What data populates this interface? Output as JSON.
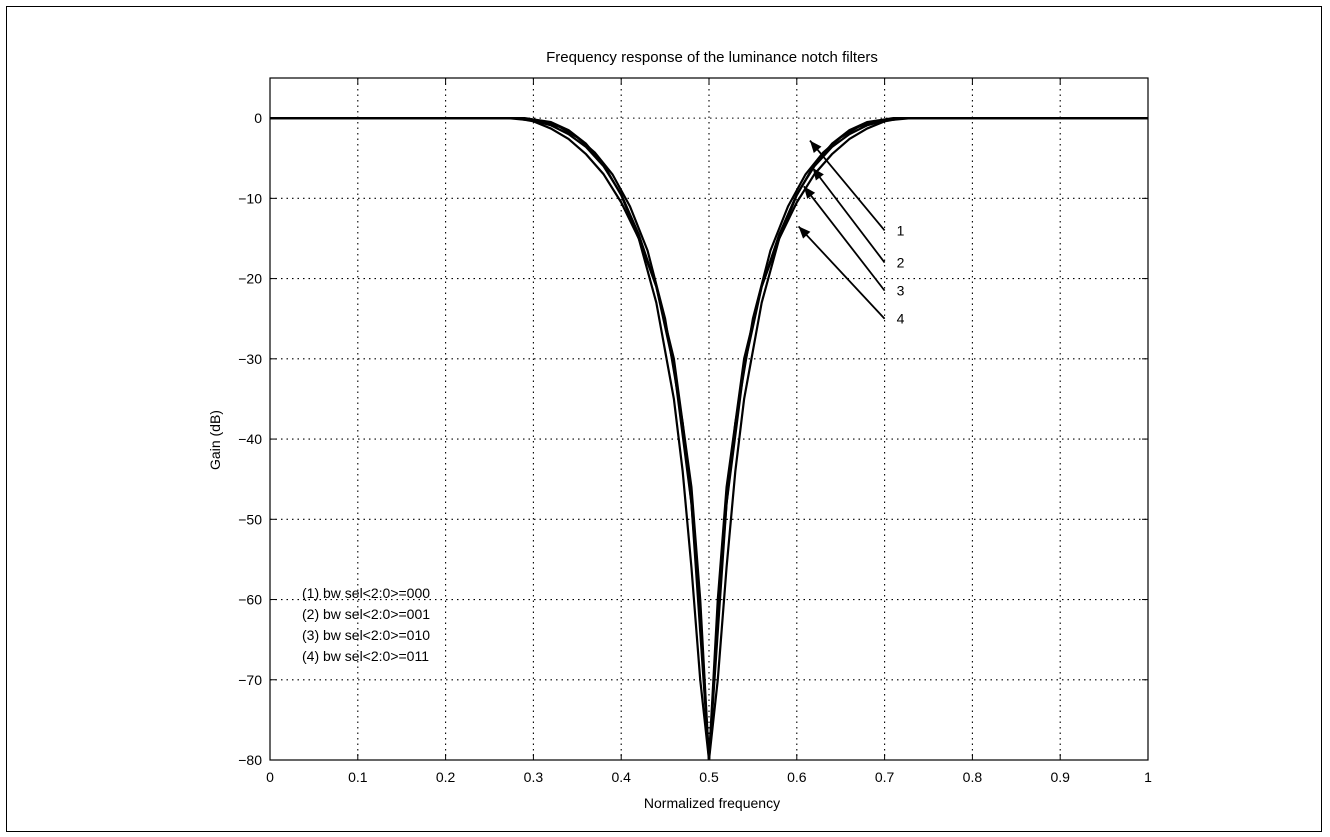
{
  "chart_data": {
    "type": "line",
    "title": "Frequency response of the luminance notch filters",
    "xlabel": "Normalized frequency",
    "ylabel": "Gain (dB)",
    "xlim": [
      0,
      1
    ],
    "ylim": [
      -80,
      5
    ],
    "x_ticks": [
      0,
      0.1,
      0.2,
      0.3,
      0.4,
      0.5,
      0.6,
      0.7,
      0.8,
      0.9,
      1
    ],
    "x_tick_labels": [
      "0",
      "0.1",
      "0.2",
      "0.3",
      "0.4",
      "0.5",
      "0.6",
      "0.7",
      "0.8",
      "0.9",
      "1"
    ],
    "y_ticks": [
      0,
      -10,
      -20,
      -30,
      -40,
      -50,
      -60,
      -70,
      -80
    ],
    "y_tick_labels": [
      "0",
      "−10",
      "−20",
      "−30",
      "−40",
      "−50",
      "−60",
      "−70",
      "−80"
    ],
    "grid": true,
    "line_color": "#000000",
    "series": [
      {
        "label": "1",
        "x": [
          0.0,
          0.25,
          0.28,
          0.3,
          0.32,
          0.34,
          0.36,
          0.38,
          0.4,
          0.42,
          0.44,
          0.46,
          0.48,
          0.49,
          0.5,
          0.51,
          0.52,
          0.54,
          0.56,
          0.58,
          0.6,
          0.62,
          0.64,
          0.66,
          0.68,
          0.7,
          0.72,
          0.75,
          1.0
        ],
        "y": [
          0,
          0,
          0,
          -0.4,
          -1.3,
          -2.6,
          -4.5,
          -7.0,
          -10.5,
          -15.0,
          -21.0,
          -30.0,
          -46.0,
          -60.0,
          -80,
          -60.0,
          -46.0,
          -30.0,
          -21.0,
          -15.0,
          -10.5,
          -7.0,
          -4.5,
          -2.6,
          -1.3,
          -0.4,
          0,
          0,
          0
        ]
      },
      {
        "label": "2",
        "x": [
          0.0,
          0.27,
          0.3,
          0.32,
          0.34,
          0.36,
          0.38,
          0.4,
          0.42,
          0.44,
          0.46,
          0.48,
          0.49,
          0.5,
          0.51,
          0.52,
          0.54,
          0.56,
          0.58,
          0.6,
          0.62,
          0.64,
          0.66,
          0.68,
          0.7,
          0.73,
          1.0
        ],
        "y": [
          0,
          0,
          -0.3,
          -0.9,
          -2.0,
          -3.6,
          -6.0,
          -9.5,
          -14.5,
          -21.0,
          -31.0,
          -48.0,
          -62.0,
          -80,
          -62.0,
          -48.0,
          -31.0,
          -21.0,
          -14.5,
          -9.5,
          -6.0,
          -3.6,
          -2.0,
          -0.9,
          -0.3,
          0,
          0
        ]
      },
      {
        "label": "3",
        "x": [
          0.0,
          0.28,
          0.31,
          0.33,
          0.35,
          0.37,
          0.39,
          0.41,
          0.43,
          0.45,
          0.47,
          0.48,
          0.49,
          0.5,
          0.51,
          0.52,
          0.53,
          0.55,
          0.57,
          0.59,
          0.61,
          0.63,
          0.65,
          0.67,
          0.69,
          0.72,
          1.0
        ],
        "y": [
          0,
          0,
          -0.4,
          -1.1,
          -2.4,
          -4.3,
          -7.0,
          -11.0,
          -16.5,
          -25.0,
          -38.0,
          -48.0,
          -64.0,
          -80,
          -64.0,
          -48.0,
          -38.0,
          -25.0,
          -16.5,
          -11.0,
          -7.0,
          -4.3,
          -2.4,
          -1.1,
          -0.4,
          0,
          0
        ]
      },
      {
        "label": "4",
        "x": [
          0.0,
          0.29,
          0.32,
          0.34,
          0.36,
          0.38,
          0.4,
          0.42,
          0.44,
          0.46,
          0.47,
          0.48,
          0.49,
          0.5,
          0.51,
          0.52,
          0.53,
          0.54,
          0.56,
          0.58,
          0.6,
          0.62,
          0.64,
          0.66,
          0.68,
          0.71,
          1.0
        ],
        "y": [
          0,
          0,
          -0.5,
          -1.5,
          -3.2,
          -5.8,
          -9.6,
          -15.0,
          -23.0,
          -35.0,
          -44.0,
          -56.0,
          -70.0,
          -80,
          -70.0,
          -56.0,
          -44.0,
          -35.0,
          -23.0,
          -15.0,
          -9.6,
          -5.8,
          -3.2,
          -1.5,
          -0.5,
          0,
          0
        ]
      }
    ],
    "callouts": [
      {
        "label": "1",
        "arrow_from": [
          0.7,
          -14
        ],
        "arrow_to": [
          0.615,
          -2.8
        ]
      },
      {
        "label": "2",
        "arrow_from": [
          0.7,
          -18
        ],
        "arrow_to": [
          0.618,
          -6.2
        ]
      },
      {
        "label": "3",
        "arrow_from": [
          0.7,
          -21.5
        ],
        "arrow_to": [
          0.608,
          -8.5
        ]
      },
      {
        "label": "4",
        "arrow_from": [
          0.7,
          -25
        ],
        "arrow_to": [
          0.602,
          -13.5
        ]
      }
    ],
    "legend_placement": "bottom-left",
    "legend_entries": [
      "(1) bw sel<2:0>=000",
      "(2) bw sel<2:0>=001",
      "(3) bw sel<2:0>=010",
      "(4) bw sel<2:0>=011"
    ]
  }
}
